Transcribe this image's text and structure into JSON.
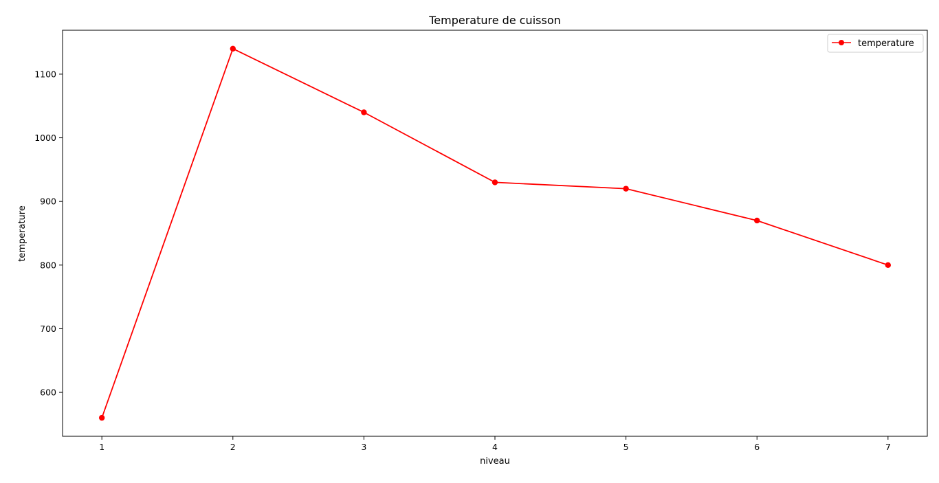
{
  "chart_data": {
    "type": "line",
    "title": "Temperature de cuisson",
    "xlabel": "niveau",
    "ylabel": "temperature",
    "x": [
      1,
      2,
      3,
      4,
      5,
      6,
      7
    ],
    "xticks": [
      "1",
      "2",
      "3",
      "4",
      "5",
      "6",
      "7"
    ],
    "yticks": [
      "600",
      "700",
      "800",
      "900",
      "1000",
      "1100"
    ],
    "series": [
      {
        "name": "temperature",
        "values": [
          560,
          1140,
          1040,
          930,
          920,
          870,
          800
        ],
        "color": "#ff0000",
        "marker": "circle"
      }
    ],
    "xlim": [
      0.7,
      7.3
    ],
    "ylim": [
      531,
      1169
    ],
    "grid": false,
    "legend_position": "top-right"
  }
}
